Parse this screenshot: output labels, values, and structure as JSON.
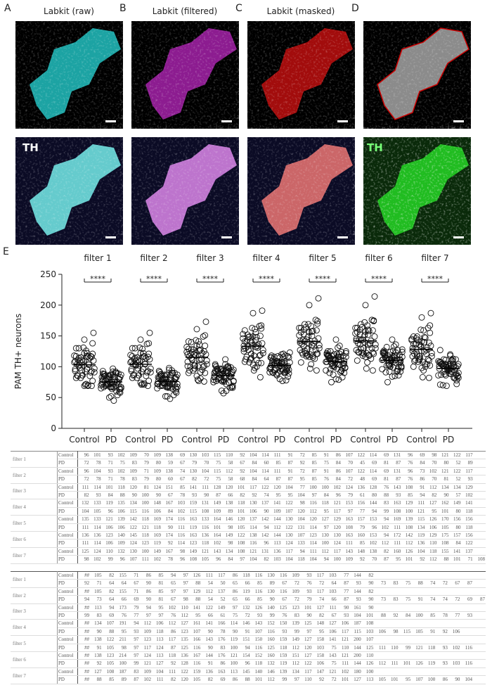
{
  "panels": {
    "letters": [
      "A",
      "B",
      "C",
      "D",
      "E"
    ],
    "titles": [
      "Labkit (raw)",
      "Labkit (filtered)",
      "Labkit (masked)"
    ],
    "stain": [
      "TH",
      "TH"
    ]
  },
  "chart_data": {
    "type": "strip",
    "ylabel": "PAM TH+ neurons",
    "filters": [
      "filter 1",
      "filter 2",
      "filter 3",
      "filter 4",
      "filter 5",
      "filter 6",
      "filter 7"
    ],
    "significance": [
      "****",
      "****",
      "****",
      "****",
      "****",
      "****",
      "****"
    ],
    "categories": [
      "Control",
      "PD",
      "Control",
      "PD",
      "Control",
      "PD",
      "Control",
      "PD",
      "Control",
      "PD",
      "Control",
      "PD",
      "Control",
      "PD"
    ],
    "ylim": [
      0,
      250
    ],
    "yticks": [
      0,
      50,
      100,
      150,
      200,
      250
    ]
  },
  "tables": [
    {
      "rows": [
        {
          "filter": "filter 1",
          "group": "Control",
          "values": [
            96,
            101,
            93,
            102,
            109,
            70,
            109,
            138,
            69,
            130,
            103,
            115,
            110,
            92,
            104,
            114,
            111,
            91,
            72,
            85,
            91,
            86,
            107,
            122,
            114,
            69,
            131,
            96,
            69,
            98,
            121,
            122,
            117
          ]
        },
        {
          "group": "PD",
          "values": [
            72,
            78,
            71,
            75,
            83,
            79,
            80,
            59,
            67,
            79,
            70,
            75,
            58,
            67,
            84,
            60,
            85,
            87,
            92,
            85,
            75,
            84,
            70,
            45,
            69,
            81,
            87,
            76,
            84,
            70,
            80,
            52,
            89
          ]
        },
        {
          "filter": "filter 2",
          "group": "Control",
          "values": [
            96,
            104,
            93,
            102,
            109,
            71,
            109,
            138,
            74,
            130,
            104,
            115,
            112,
            92,
            104,
            114,
            111,
            91,
            72,
            87,
            91,
            86,
            107,
            122,
            114,
            69,
            131,
            96,
            73,
            102,
            121,
            122,
            117
          ]
        },
        {
          "group": "PD",
          "values": [
            72,
            78,
            71,
            78,
            83,
            79,
            80,
            60,
            67,
            82,
            72,
            75,
            58,
            68,
            84,
            64,
            87,
            87,
            95,
            85,
            76,
            84,
            72,
            48,
            69,
            81,
            87,
            76,
            86,
            70,
            81,
            52,
            93
          ]
        },
        {
          "filter": "filter 3",
          "group": "Control",
          "values": [
            111,
            114,
            101,
            118,
            120,
            81,
            124,
            151,
            85,
            141,
            111,
            128,
            120,
            101,
            117,
            122,
            120,
            104,
            77,
            100,
            100,
            102,
            124,
            136,
            128,
            76,
            143,
            108,
            91,
            112,
            134,
            134,
            129
          ]
        },
        {
          "group": "PD",
          "values": [
            82,
            93,
            84,
            88,
            90,
            100,
            90,
            67,
            78,
            93,
            90,
            87,
            66,
            82,
            92,
            74,
            95,
            95,
            104,
            97,
            84,
            96,
            79,
            61,
            80,
            88,
            93,
            85,
            94,
            82,
            90,
            57,
            102
          ]
        },
        {
          "filter": "filter 4",
          "group": "Control",
          "values": [
            132,
            133,
            119,
            135,
            134,
            100,
            148,
            167,
            103,
            159,
            131,
            149,
            138,
            118,
            130,
            137,
            141,
            122,
            98,
            116,
            118,
            121,
            153,
            156,
            144,
            83,
            163,
            129,
            111,
            127,
            162,
            149,
            141
          ]
        },
        {
          "group": "PD",
          "values": [
            104,
            105,
            96,
            106,
            115,
            116,
            106,
            84,
            102,
            115,
            108,
            109,
            89,
            101,
            106,
            90,
            109,
            107,
            120,
            112,
            95,
            117,
            97,
            77,
            94,
            99,
            108,
            100,
            121,
            95,
            101,
            80,
            118
          ]
        },
        {
          "filter": "filter 5",
          "group": "Control",
          "values": [
            135,
            133,
            121,
            139,
            142,
            118,
            169,
            174,
            116,
            163,
            133,
            164,
            146,
            120,
            137,
            142,
            144,
            130,
            104,
            120,
            127,
            129,
            163,
            157,
            153,
            94,
            169,
            139,
            115,
            126,
            170,
            156,
            156
          ]
        },
        {
          "group": "PD",
          "values": [
            111,
            114,
            106,
            106,
            122,
            121,
            118,
            90,
            111,
            119,
            116,
            101,
            98,
            105,
            114,
            94,
            112,
            122,
            131,
            114,
            97,
            120,
            108,
            79,
            96,
            102,
            111,
            108,
            134,
            106,
            105,
            80,
            118
          ]
        },
        {
          "filter": "filter 6",
          "group": "Control",
          "values": [
            136,
            136,
            123,
            140,
            145,
            118,
            169,
            174,
            116,
            163,
            136,
            164,
            149,
            122,
            138,
            142,
            144,
            130,
            107,
            123,
            130,
            130,
            163,
            160,
            153,
            94,
            172,
            142,
            119,
            129,
            175,
            157,
            156
          ]
        },
        {
          "group": "PD",
          "values": [
            111,
            114,
            106,
            109,
            124,
            123,
            119,
            92,
            114,
            123,
            118,
            102,
            98,
            108,
            116,
            96,
            113,
            124,
            133,
            114,
            100,
            124,
            111,
            85,
            102,
            112,
            111,
            112,
            136,
            110,
            108,
            84,
            122
          ]
        },
        {
          "filter": "filter 7",
          "group": "Control",
          "values": [
            125,
            124,
            110,
            132,
            130,
            100,
            149,
            167,
            98,
            149,
            121,
            143,
            134,
            108,
            121,
            131,
            136,
            117,
            94,
            111,
            112,
            117,
            143,
            148,
            138,
            82,
            160,
            126,
            104,
            118,
            155,
            141,
            137
          ]
        },
        {
          "group": "PD",
          "values": [
            98,
            102,
            99,
            96,
            107,
            111,
            102,
            78,
            96,
            108,
            105,
            96,
            84,
            97,
            104,
            82,
            103,
            104,
            118,
            104,
            94,
            100,
            109,
            92,
            70,
            87,
            95,
            101,
            92,
            112,
            88,
            101,
            71,
            108
          ]
        }
      ]
    },
    {
      "rows": [
        {
          "filter": "filter 1",
          "group": "Control",
          "values": [
            "##",
            105,
            82,
            155,
            71,
            86,
            85,
            94,
            97,
            126,
            111,
            117,
            86,
            118,
            116,
            130,
            116,
            109,
            93,
            117,
            103,
            77,
            144,
            82
          ]
        },
        {
          "group": "PD",
          "values": [
            92,
            71,
            64,
            64,
            67,
            90,
            81,
            65,
            97,
            88,
            54,
            50,
            65,
            66,
            85,
            89,
            67,
            72,
            76,
            72,
            64,
            87,
            93,
            90,
            73,
            83,
            75,
            88,
            74,
            72,
            67,
            87
          ]
        },
        {
          "filter": "filter 2",
          "group": "Control",
          "values": [
            "##",
            105,
            82,
            155,
            71,
            86,
            85,
            97,
            97,
            129,
            112,
            137,
            86,
            119,
            116,
            130,
            116,
            109,
            93,
            117,
            103,
            77,
            144,
            82
          ]
        },
        {
          "group": "PD",
          "values": [
            94,
            73,
            64,
            66,
            69,
            90,
            81,
            67,
            98,
            88,
            54,
            52,
            65,
            66,
            85,
            90,
            67,
            72,
            79,
            74,
            66,
            87,
            93,
            90,
            73,
            83,
            75,
            91,
            74,
            74,
            72,
            69,
            87
          ]
        },
        {
          "filter": "filter 3",
          "group": "Control",
          "values": [
            "##",
            113,
            94,
            173,
            79,
            94,
            95,
            102,
            110,
            141,
            122,
            149,
            97,
            132,
            126,
            140,
            125,
            123,
            101,
            127,
            111,
            90,
            161,
            90
          ]
        },
        {
          "group": "PD",
          "values": [
            99,
            83,
            69,
            76,
            77,
            97,
            97,
            76,
            112,
            95,
            66,
            61,
            75,
            72,
            93,
            99,
            76,
            83,
            90,
            82,
            67,
            93,
            104,
            101,
            88,
            92,
            84,
            100,
            85,
            78,
            77,
            93
          ]
        },
        {
          "filter": "filter 4",
          "group": "Control",
          "values": [
            "##",
            134,
            107,
            191,
            94,
            112,
            106,
            112,
            127,
            161,
            141,
            166,
            114,
            146,
            143,
            152,
            150,
            139,
            125,
            148,
            127,
            106,
            187,
            108
          ]
        },
        {
          "group": "PD",
          "values": [
            "##",
            90,
            88,
            95,
            93,
            109,
            118,
            86,
            123,
            107,
            90,
            78,
            90,
            91,
            107,
            116,
            93,
            99,
            97,
            95,
            106,
            117,
            115,
            103,
            106,
            98,
            115,
            105,
            91,
            92,
            106
          ]
        },
        {
          "filter": "filter 5",
          "group": "Control",
          "values": [
            "##",
            138,
            122,
            211,
            97,
            123,
            113,
            117,
            135,
            166,
            143,
            176,
            119,
            151,
            150,
            160,
            159,
            149,
            127,
            158,
            141,
            121,
            200,
            107
          ]
        },
        {
          "group": "PD",
          "values": [
            "##",
            91,
            105,
            98,
            97,
            117,
            124,
            87,
            125,
            116,
            90,
            83,
            100,
            94,
            116,
            125,
            118,
            112,
            120,
            103,
            75,
            110,
            144,
            125,
            111,
            110,
            99,
            121,
            118,
            93,
            102,
            116
          ]
        },
        {
          "filter": "filter 6",
          "group": "Control",
          "values": [
            "##",
            138,
            123,
            214,
            97,
            124,
            113,
            118,
            136,
            167,
            144,
            176,
            121,
            154,
            152,
            160,
            159,
            151,
            127,
            158,
            143,
            121,
            200,
            110
          ]
        },
        {
          "group": "PD",
          "values": [
            "##",
            92,
            105,
            100,
            99,
            121,
            127,
            92,
            128,
            116,
            91,
            86,
            100,
            96,
            118,
            132,
            119,
            112,
            122,
            106,
            75,
            111,
            144,
            126,
            112,
            111,
            101,
            126,
            119,
            93,
            103,
            116
          ]
        },
        {
          "filter": "filter 7",
          "group": "Control",
          "values": [
            "##",
            127,
            108,
            187,
            83,
            109,
            104,
            111,
            122,
            159,
            136,
            163,
            113,
            145,
            140,
            146,
            139,
            134,
            117,
            147,
            121,
            102,
            180,
            100
          ]
        },
        {
          "group": "PD",
          "values": [
            "##",
            88,
            85,
            89,
            87,
            102,
            111,
            82,
            120,
            105,
            82,
            69,
            86,
            88,
            101,
            112,
            99,
            97,
            110,
            92,
            72,
            101,
            127,
            113,
            105,
            101,
            95,
            107,
            100,
            86,
            90,
            104
          ]
        }
      ]
    }
  ]
}
